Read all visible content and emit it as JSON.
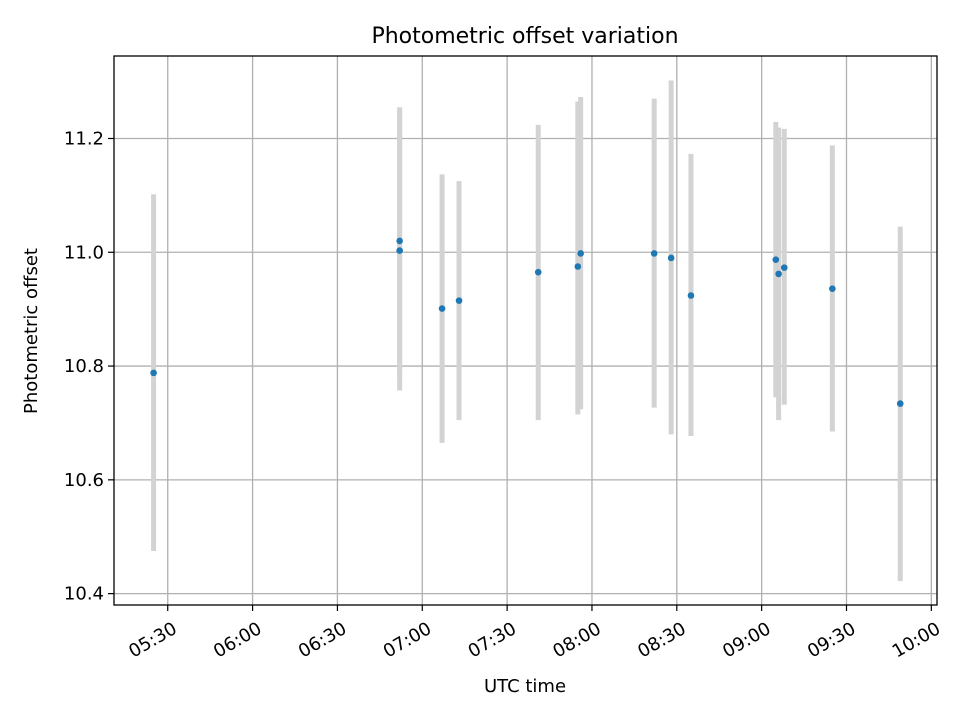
{
  "chart_data": {
    "type": "scatter",
    "title": "Photometric offset variation",
    "xlabel": "UTC time",
    "ylabel": "Photometric offset",
    "grid": true,
    "xlim": [
      "05:11",
      "10:02"
    ],
    "ylim": [
      10.38,
      11.345
    ],
    "xticks": [
      "05:30",
      "06:00",
      "06:30",
      "07:00",
      "07:30",
      "08:00",
      "08:30",
      "09:00",
      "09:30",
      "10:00"
    ],
    "yticks": [
      10.4,
      10.6,
      10.8,
      11.0,
      11.2
    ],
    "ytick_labels": [
      "10.4",
      "10.6",
      "10.8",
      "11.0",
      "11.2"
    ],
    "colors": {
      "points": "#1f77b4",
      "error_bars": "#d3d3d3",
      "grid": "#b0b0b0"
    },
    "points": [
      {
        "x": "05:25",
        "y": 10.788,
        "low": 10.475,
        "high": 11.102
      },
      {
        "x": "06:52",
        "y": 11.02,
        "low": 10.785,
        "high": 11.255
      },
      {
        "x": "06:52",
        "y": 11.003,
        "low": 10.757,
        "high": 11.249
      },
      {
        "x": "07:07",
        "y": 10.901,
        "low": 10.665,
        "high": 11.137
      },
      {
        "x": "07:13",
        "y": 10.915,
        "low": 10.705,
        "high": 11.125
      },
      {
        "x": "07:41",
        "y": 10.965,
        "low": 10.705,
        "high": 11.224
      },
      {
        "x": "07:55",
        "y": 10.975,
        "low": 10.715,
        "high": 11.265
      },
      {
        "x": "07:56",
        "y": 10.998,
        "low": 10.724,
        "high": 11.273
      },
      {
        "x": "08:22",
        "y": 10.998,
        "low": 10.727,
        "high": 11.27
      },
      {
        "x": "08:28",
        "y": 10.99,
        "low": 10.68,
        "high": 11.302
      },
      {
        "x": "08:35",
        "y": 10.924,
        "low": 10.677,
        "high": 11.173
      },
      {
        "x": "09:05",
        "y": 10.987,
        "low": 10.745,
        "high": 11.229
      },
      {
        "x": "09:06",
        "y": 10.962,
        "low": 10.705,
        "high": 11.219
      },
      {
        "x": "09:08",
        "y": 10.973,
        "low": 10.732,
        "high": 11.217
      },
      {
        "x": "09:25",
        "y": 10.936,
        "low": 10.685,
        "high": 11.188
      },
      {
        "x": "09:49",
        "y": 10.734,
        "low": 10.422,
        "high": 11.045
      }
    ]
  }
}
